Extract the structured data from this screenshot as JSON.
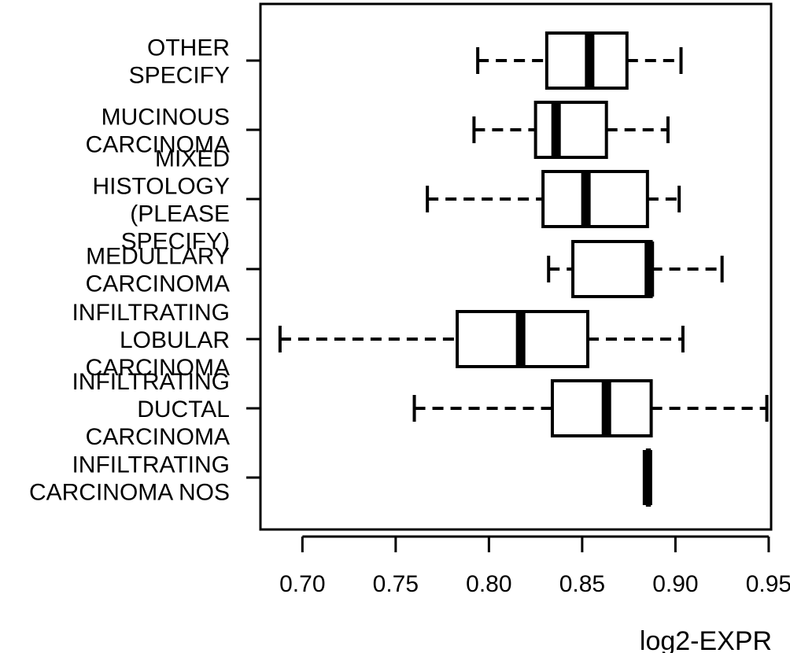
{
  "chart_data": {
    "type": "boxplot",
    "orientation": "horizontal",
    "title": "",
    "xlabel": "log2-EXPR",
    "ylabel": "",
    "xlim": [
      0.6775,
      0.9513
    ],
    "xticks": [
      0.7,
      0.75,
      0.8,
      0.85,
      0.9,
      0.95
    ],
    "xtick_labels": [
      "0.70",
      "0.75",
      "0.80",
      "0.85",
      "0.90",
      "0.95"
    ],
    "grid": false,
    "categories": [
      {
        "label_lines": [
          "OTHER",
          "SPECIFY"
        ],
        "whisker_low": 0.794,
        "q1": 0.831,
        "median": 0.854,
        "q3": 0.874,
        "whisker_high": 0.903
      },
      {
        "label_lines": [
          "MUCINOUS",
          "CARCINOMA"
        ],
        "whisker_low": 0.792,
        "q1": 0.825,
        "median": 0.836,
        "q3": 0.863,
        "whisker_high": 0.896
      },
      {
        "label_lines": [
          "MIXED",
          "HISTOLOGY",
          "(PLEASE",
          "SPECIFY)"
        ],
        "whisker_low": 0.767,
        "q1": 0.829,
        "median": 0.852,
        "q3": 0.885,
        "whisker_high": 0.902
      },
      {
        "label_lines": [
          "MEDULLARY",
          "CARCINOMA"
        ],
        "whisker_low": 0.832,
        "q1": 0.845,
        "median": 0.886,
        "q3": 0.887,
        "whisker_high": 0.925
      },
      {
        "label_lines": [
          "INFILTRATING",
          "LOBULAR",
          "CARCINOMA"
        ],
        "whisker_low": 0.688,
        "q1": 0.783,
        "median": 0.817,
        "q3": 0.853,
        "whisker_high": 0.904
      },
      {
        "label_lines": [
          "INFILTRATING",
          "DUCTAL",
          "CARCINOMA"
        ],
        "whisker_low": 0.76,
        "q1": 0.834,
        "median": 0.863,
        "q3": 0.887,
        "whisker_high": 0.949
      },
      {
        "label_lines": [
          "INFILTRATING",
          "CARCINOMA NOS"
        ],
        "whisker_low": 0.885,
        "q1": 0.885,
        "median": 0.885,
        "q3": 0.886,
        "whisker_high": 0.886
      }
    ]
  }
}
